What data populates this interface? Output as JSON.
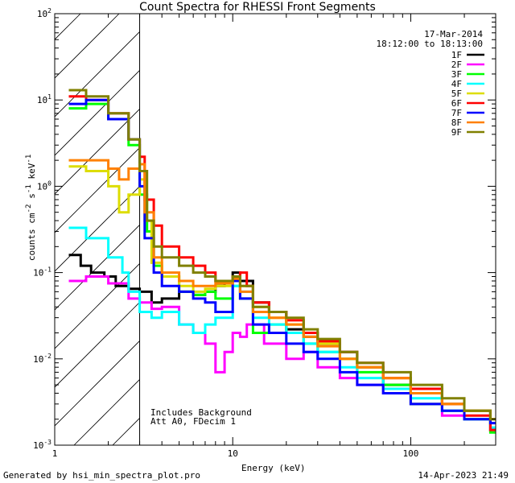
{
  "chart_data": {
    "type": "line",
    "title": "Count Spectra for RHESSI Front Segments",
    "xlabel": "Energy (keV)",
    "ylabel_parts": {
      "base": "counts cm",
      "exp1": "-2",
      "mid1": " s",
      "exp2": "-1",
      "mid2": " keV",
      "exp3": "-1"
    },
    "xscale": "log",
    "yscale": "log",
    "xlim": [
      1,
      300
    ],
    "ylim": [
      0.001,
      100
    ],
    "x_ticks": [
      {
        "value": 1,
        "label": "1"
      },
      {
        "value": 10,
        "label": "10"
      },
      {
        "value": 100,
        "label": "100"
      }
    ],
    "y_ticks": [
      {
        "value": 0.001,
        "base": "10",
        "exp": "-3"
      },
      {
        "value": 0.01,
        "base": "10",
        "exp": "-2"
      },
      {
        "value": 0.1,
        "base": "10",
        "exp": "-1"
      },
      {
        "value": 1,
        "base": "10",
        "exp": "0"
      },
      {
        "value": 10,
        "base": "10",
        "exp": "1"
      },
      {
        "value": 100,
        "base": "10",
        "exp": "2"
      }
    ],
    "shaded_region": {
      "x0": 1,
      "x1": 3,
      "pattern": "diagonal hatch"
    },
    "date": "17-Mar-2014",
    "time_range": "18:12:00 to 18:13:00",
    "annotations": [
      "Includes Background",
      "Att A0, FDecim 1"
    ],
    "legend_position": "top-right",
    "series": [
      {
        "name": "1F",
        "color": "#000000",
        "points": [
          [
            1.2,
            0.16
          ],
          [
            1.4,
            0.12
          ],
          [
            1.6,
            0.1
          ],
          [
            1.9,
            0.09
          ],
          [
            2.2,
            0.07
          ],
          [
            2.6,
            0.065
          ],
          [
            3,
            0.06
          ],
          [
            3.5,
            0.045
          ],
          [
            4,
            0.05
          ],
          [
            5,
            0.06
          ],
          [
            6,
            0.055
          ],
          [
            7,
            0.06
          ],
          [
            8,
            0.07
          ],
          [
            9,
            0.08
          ],
          [
            10,
            0.1
          ],
          [
            11,
            0.08
          ],
          [
            13,
            0.045
          ],
          [
            16,
            0.035
          ],
          [
            20,
            0.022
          ],
          [
            25,
            0.018
          ],
          [
            30,
            0.015
          ],
          [
            40,
            0.012
          ],
          [
            50,
            0.008
          ],
          [
            70,
            0.005
          ],
          [
            100,
            0.004
          ],
          [
            150,
            0.003
          ],
          [
            200,
            0.0025
          ],
          [
            280,
            0.0015
          ]
        ]
      },
      {
        "name": "2F",
        "color": "#ff00ff",
        "points": [
          [
            1.2,
            0.08
          ],
          [
            1.5,
            0.09
          ],
          [
            2,
            0.075
          ],
          [
            2.6,
            0.05
          ],
          [
            3,
            0.045
          ],
          [
            3.5,
            0.038
          ],
          [
            4,
            0.04
          ],
          [
            5,
            0.025
          ],
          [
            6,
            0.02
          ],
          [
            7,
            0.015
          ],
          [
            8,
            0.007
          ],
          [
            9,
            0.012
          ],
          [
            10,
            0.02
          ],
          [
            11,
            0.018
          ],
          [
            12,
            0.025
          ],
          [
            15,
            0.015
          ],
          [
            20,
            0.01
          ],
          [
            25,
            0.012
          ],
          [
            30,
            0.008
          ],
          [
            40,
            0.006
          ],
          [
            50,
            0.005
          ],
          [
            70,
            0.004
          ],
          [
            100,
            0.003
          ],
          [
            150,
            0.0022
          ],
          [
            200,
            0.002
          ],
          [
            280,
            0.0015
          ]
        ]
      },
      {
        "name": "3F",
        "color": "#00ff00",
        "points": [
          [
            1.2,
            8
          ],
          [
            1.5,
            9
          ],
          [
            2,
            6
          ],
          [
            2.6,
            3
          ],
          [
            3,
            0.8
          ],
          [
            3.3,
            0.3
          ],
          [
            3.6,
            0.12
          ],
          [
            4,
            0.09
          ],
          [
            5,
            0.06
          ],
          [
            6,
            0.055
          ],
          [
            7,
            0.06
          ],
          [
            8,
            0.05
          ],
          [
            10,
            0.07
          ],
          [
            11,
            0.05
          ],
          [
            13,
            0.02
          ],
          [
            16,
            0.025
          ],
          [
            20,
            0.02
          ],
          [
            25,
            0.015
          ],
          [
            30,
            0.012
          ],
          [
            40,
            0.01
          ],
          [
            50,
            0.007
          ],
          [
            70,
            0.005
          ],
          [
            100,
            0.003
          ],
          [
            150,
            0.0025
          ],
          [
            200,
            0.002
          ],
          [
            280,
            0.0014
          ]
        ]
      },
      {
        "name": "4F",
        "color": "#00ffff",
        "points": [
          [
            1.2,
            0.33
          ],
          [
            1.5,
            0.25
          ],
          [
            2,
            0.15
          ],
          [
            2.4,
            0.1
          ],
          [
            2.6,
            0.06
          ],
          [
            3,
            0.035
          ],
          [
            3.5,
            0.03
          ],
          [
            4,
            0.035
          ],
          [
            5,
            0.025
          ],
          [
            6,
            0.02
          ],
          [
            7,
            0.025
          ],
          [
            8,
            0.03
          ],
          [
            10,
            0.07
          ],
          [
            11,
            0.06
          ],
          [
            13,
            0.03
          ],
          [
            16,
            0.025
          ],
          [
            20,
            0.02
          ],
          [
            25,
            0.015
          ],
          [
            30,
            0.012
          ],
          [
            40,
            0.008
          ],
          [
            50,
            0.006
          ],
          [
            70,
            0.0045
          ],
          [
            100,
            0.0035
          ],
          [
            150,
            0.0025
          ],
          [
            200,
            0.002
          ],
          [
            280,
            0.0016
          ]
        ]
      },
      {
        "name": "5F",
        "color": "#dddd00",
        "points": [
          [
            1.2,
            1.7
          ],
          [
            1.5,
            1.5
          ],
          [
            2,
            1.0
          ],
          [
            2.3,
            0.5
          ],
          [
            2.6,
            0.8
          ],
          [
            3,
            1.2
          ],
          [
            3.2,
            0.4
          ],
          [
            3.5,
            0.13
          ],
          [
            4,
            0.09
          ],
          [
            5,
            0.07
          ],
          [
            6,
            0.06
          ],
          [
            7,
            0.065
          ],
          [
            8,
            0.07
          ],
          [
            10,
            0.09
          ],
          [
            11,
            0.07
          ],
          [
            13,
            0.04
          ],
          [
            16,
            0.03
          ],
          [
            20,
            0.025
          ],
          [
            25,
            0.02
          ],
          [
            30,
            0.015
          ],
          [
            40,
            0.01
          ],
          [
            50,
            0.008
          ],
          [
            70,
            0.006
          ],
          [
            100,
            0.004
          ],
          [
            150,
            0.003
          ],
          [
            200,
            0.0025
          ],
          [
            280,
            0.002
          ]
        ]
      },
      {
        "name": "6F",
        "color": "#ff0000",
        "points": [
          [
            1.2,
            11
          ],
          [
            1.5,
            10
          ],
          [
            2,
            7
          ],
          [
            2.6,
            3.5
          ],
          [
            3,
            2.2
          ],
          [
            3.2,
            0.7
          ],
          [
            3.6,
            0.35
          ],
          [
            4,
            0.2
          ],
          [
            5,
            0.15
          ],
          [
            6,
            0.12
          ],
          [
            7,
            0.1
          ],
          [
            8,
            0.08
          ],
          [
            10,
            0.09
          ],
          [
            11,
            0.1
          ],
          [
            12,
            0.07
          ],
          [
            13,
            0.045
          ],
          [
            16,
            0.035
          ],
          [
            20,
            0.028
          ],
          [
            25,
            0.02
          ],
          [
            30,
            0.016
          ],
          [
            40,
            0.012
          ],
          [
            50,
            0.009
          ],
          [
            70,
            0.006
          ],
          [
            100,
            0.0045
          ],
          [
            150,
            0.003
          ],
          [
            200,
            0.0022
          ],
          [
            280,
            0.0015
          ]
        ]
      },
      {
        "name": "7F",
        "color": "#0000ff",
        "points": [
          [
            1.2,
            9
          ],
          [
            1.5,
            10
          ],
          [
            2,
            6
          ],
          [
            2.6,
            3.5
          ],
          [
            3,
            1.0
          ],
          [
            3.2,
            0.25
          ],
          [
            3.6,
            0.1
          ],
          [
            4,
            0.07
          ],
          [
            5,
            0.06
          ],
          [
            6,
            0.05
          ],
          [
            7,
            0.045
          ],
          [
            8,
            0.035
          ],
          [
            10,
            0.08
          ],
          [
            11,
            0.05
          ],
          [
            13,
            0.025
          ],
          [
            16,
            0.02
          ],
          [
            20,
            0.015
          ],
          [
            25,
            0.012
          ],
          [
            30,
            0.01
          ],
          [
            40,
            0.007
          ],
          [
            50,
            0.005
          ],
          [
            70,
            0.004
          ],
          [
            100,
            0.003
          ],
          [
            150,
            0.0025
          ],
          [
            200,
            0.002
          ],
          [
            280,
            0.0018
          ]
        ]
      },
      {
        "name": "8F",
        "color": "#ff8000",
        "points": [
          [
            1.2,
            2.0
          ],
          [
            1.5,
            2.0
          ],
          [
            2,
            1.6
          ],
          [
            2.3,
            1.2
          ],
          [
            2.6,
            1.6
          ],
          [
            3,
            1.8
          ],
          [
            3.2,
            0.5
          ],
          [
            3.6,
            0.15
          ],
          [
            4,
            0.1
          ],
          [
            5,
            0.08
          ],
          [
            6,
            0.07
          ],
          [
            7,
            0.07
          ],
          [
            8,
            0.075
          ],
          [
            10,
            0.085
          ],
          [
            11,
            0.06
          ],
          [
            13,
            0.035
          ],
          [
            16,
            0.03
          ],
          [
            20,
            0.025
          ],
          [
            25,
            0.018
          ],
          [
            30,
            0.014
          ],
          [
            40,
            0.01
          ],
          [
            50,
            0.008
          ],
          [
            70,
            0.006
          ],
          [
            100,
            0.004
          ],
          [
            150,
            0.003
          ],
          [
            200,
            0.0025
          ],
          [
            280,
            0.002
          ]
        ]
      },
      {
        "name": "9F",
        "color": "#808000",
        "points": [
          [
            1.2,
            13
          ],
          [
            1.5,
            11
          ],
          [
            2,
            7
          ],
          [
            2.6,
            3.5
          ],
          [
            3,
            1.5
          ],
          [
            3.3,
            0.4
          ],
          [
            3.6,
            0.2
          ],
          [
            4,
            0.15
          ],
          [
            5,
            0.12
          ],
          [
            6,
            0.1
          ],
          [
            7,
            0.09
          ],
          [
            8,
            0.08
          ],
          [
            10,
            0.09
          ],
          [
            11,
            0.07
          ],
          [
            13,
            0.04
          ],
          [
            16,
            0.035
          ],
          [
            20,
            0.03
          ],
          [
            25,
            0.022
          ],
          [
            30,
            0.017
          ],
          [
            40,
            0.012
          ],
          [
            50,
            0.009
          ],
          [
            70,
            0.007
          ],
          [
            100,
            0.005
          ],
          [
            150,
            0.0035
          ],
          [
            200,
            0.0025
          ],
          [
            280,
            0.002
          ]
        ]
      }
    ]
  },
  "footer": {
    "generated": "Generated by hsi_min_spectra_plot.pro",
    "timestamp": "14-Apr-2023 21:49"
  }
}
